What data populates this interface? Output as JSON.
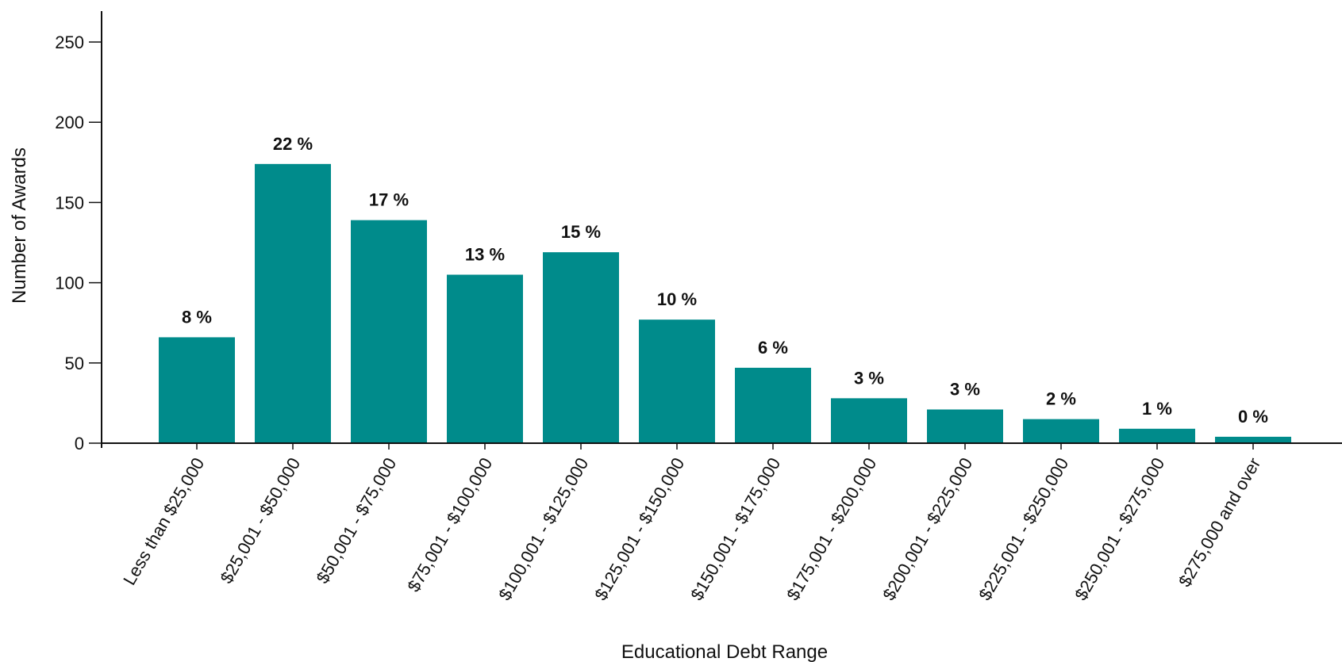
{
  "chart_data": {
    "type": "bar",
    "title": "",
    "xlabel": "Educational Debt Range",
    "ylabel": "Number of Awards",
    "ylim": [
      0,
      270
    ],
    "yticks": [
      0,
      50,
      100,
      150,
      200,
      250
    ],
    "grid": false,
    "legend": "none",
    "bar_color": "#008b8b",
    "categories": [
      "Less than $25,000",
      "$25,001 - $50,000",
      "$50,001 - $75,000",
      "$75,001 - $100,000",
      "$100,001 - $125,000",
      "$125,001 - $150,000",
      "$150,001 - $175,000",
      "$175,001 - $200,000",
      "$200,001 - $225,000",
      "$225,001 - $250,000",
      "$250,001 - $275,000",
      "$275,000 and over"
    ],
    "values": [
      66,
      174,
      139,
      105,
      119,
      77,
      47,
      28,
      21,
      15,
      9,
      4
    ],
    "data_labels": [
      "8 %",
      "22 %",
      "17 %",
      "13 %",
      "15 %",
      "10 %",
      "6 %",
      "3 %",
      "3 %",
      "2 %",
      "1 %",
      "0 %"
    ]
  }
}
